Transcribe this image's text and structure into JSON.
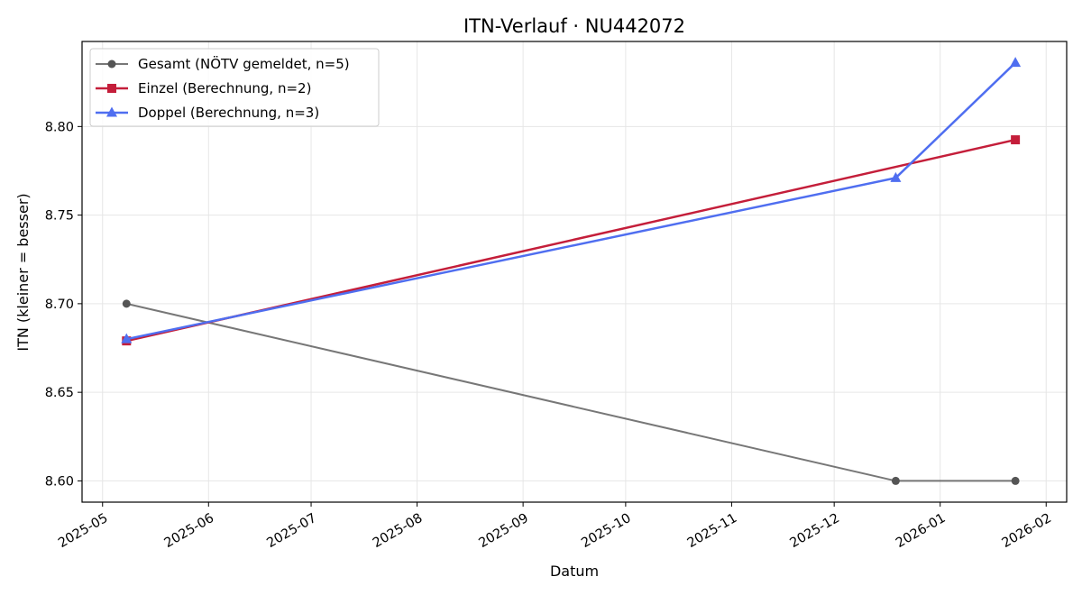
{
  "chart_data": {
    "type": "line",
    "title": "ITN-Verlauf · NU442072",
    "xlabel": "Datum",
    "ylabel": "ITN  (kleiner = besser)",
    "x_ticks": [
      "2025-05",
      "2025-06",
      "2025-07",
      "2025-08",
      "2025-09",
      "2025-10",
      "2025-11",
      "2025-12",
      "2026-01",
      "2026-02"
    ],
    "y_ticks": [
      8.6,
      8.65,
      8.7,
      8.75,
      8.8
    ],
    "xlim": [
      "2025-04-25",
      "2026-02-07"
    ],
    "ylim": [
      8.588,
      8.848
    ],
    "grid": true,
    "legend_position": "top-left",
    "series": [
      {
        "name": "Gesamt (NÖTV gemeldet, n=5)",
        "color": "#555555",
        "marker": "circle",
        "points": [
          {
            "x": "2025-05-08",
            "y": 8.7
          },
          {
            "x": "2025-12-19",
            "y": 8.6
          },
          {
            "x": "2026-01-23",
            "y": 8.6
          }
        ]
      },
      {
        "name": "Einzel (Berechnung, n=2)",
        "color": "#c41e3a",
        "marker": "square",
        "points": [
          {
            "x": "2025-05-08",
            "y": 8.679
          },
          {
            "x": "2026-01-23",
            "y": 8.7925
          }
        ]
      },
      {
        "name": "Doppel (Berechnung, n=3)",
        "color": "#4f6ef0",
        "marker": "triangle",
        "points": [
          {
            "x": "2025-05-08",
            "y": 8.68
          },
          {
            "x": "2025-12-19",
            "y": 8.771
          },
          {
            "x": "2026-01-23",
            "y": 8.836
          }
        ]
      }
    ]
  }
}
